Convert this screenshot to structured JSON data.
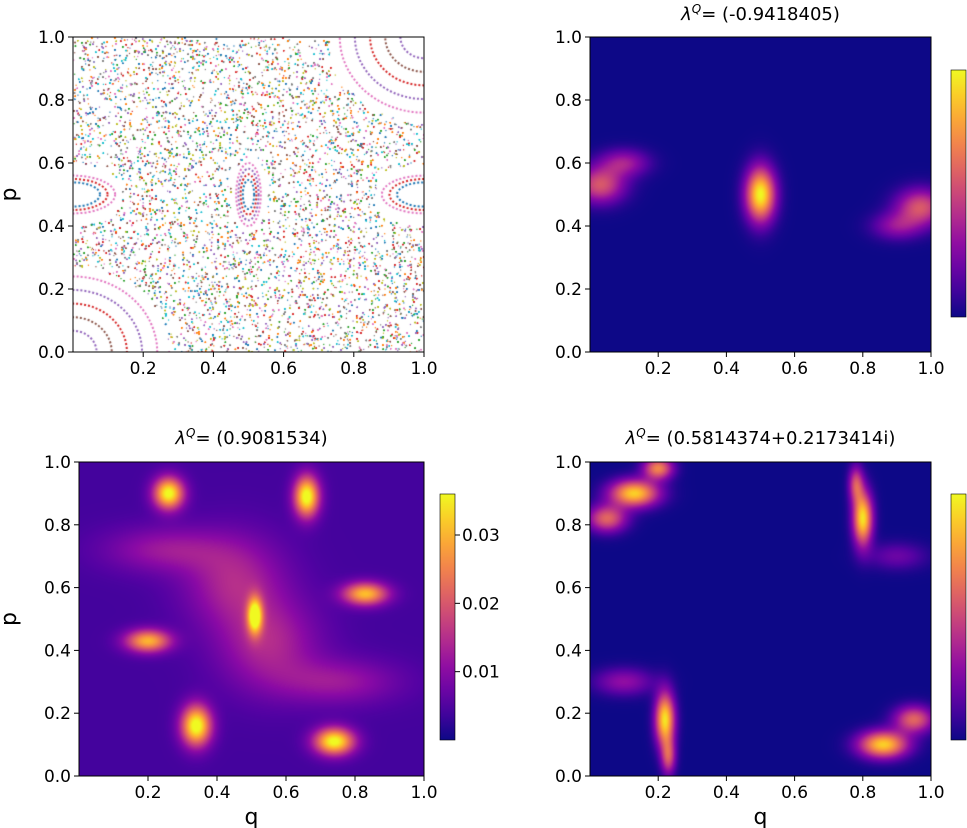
{
  "chart_data": [
    {
      "type": "scatter",
      "title": "",
      "xlabel": "",
      "ylabel": "p",
      "xlim": [
        0.0,
        1.0
      ],
      "ylim": [
        0.0,
        1.0
      ],
      "x_ticks": [
        "0.2",
        "0.4",
        "0.6",
        "0.8",
        "1.0"
      ],
      "y_ticks": [
        "0.0",
        "0.2",
        "0.4",
        "0.6",
        "0.8",
        "1.0"
      ],
      "grid": false,
      "description": "Poincare section: chaotic sea of multicolored points with regular islands near (0,0),(1,1),(0.5,0.5),(0,0.5),(1,0.5)",
      "islands": [
        {
          "q": 0.0,
          "p": 0.0
        },
        {
          "q": 1.0,
          "p": 1.0
        },
        {
          "q": 0.5,
          "p": 0.5
        },
        {
          "q": 0.0,
          "p": 0.5
        },
        {
          "q": 1.0,
          "p": 0.5
        }
      ]
    },
    {
      "type": "heatmap",
      "title_prefix": "λ",
      "title_sup": "Q",
      "title_value": "= (-0.9418405)",
      "xlabel": "",
      "ylabel": "",
      "xlim": [
        0.0,
        1.0
      ],
      "ylim": [
        0.0,
        1.0
      ],
      "x_ticks": [
        "0.2",
        "0.4",
        "0.6",
        "0.8",
        "1.0"
      ],
      "y_ticks": [
        "0.0",
        "0.2",
        "0.4",
        "0.6",
        "0.8",
        "1.0"
      ],
      "colormap": "plasma",
      "colorbar_ticks": [],
      "blobs": [
        {
          "q": 0.5,
          "p": 0.5,
          "sq": 0.03,
          "sp": 0.06,
          "amp": 1.0
        },
        {
          "q": 0.03,
          "p": 0.53,
          "sq": 0.05,
          "sp": 0.04,
          "amp": 0.55
        },
        {
          "q": 0.1,
          "p": 0.6,
          "sq": 0.05,
          "sp": 0.03,
          "amp": 0.35
        },
        {
          "q": 0.97,
          "p": 0.46,
          "sq": 0.05,
          "sp": 0.04,
          "amp": 0.55
        },
        {
          "q": 0.9,
          "p": 0.4,
          "sq": 0.05,
          "sp": 0.03,
          "amp": 0.3
        }
      ]
    },
    {
      "type": "heatmap",
      "title_prefix": "λ",
      "title_sup": "Q",
      "title_value": "= (0.9081534)",
      "xlabel": "q",
      "ylabel": "p",
      "xlim": [
        0.0,
        1.0
      ],
      "ylim": [
        0.0,
        1.0
      ],
      "x_ticks": [
        "0.2",
        "0.4",
        "0.6",
        "0.8",
        "1.0"
      ],
      "y_ticks": [
        "0.0",
        "0.2",
        "0.4",
        "0.6",
        "0.8",
        "1.0"
      ],
      "colormap": "plasma",
      "colorbar_range": [
        0.0,
        0.036
      ],
      "colorbar_ticks": [
        "0.01",
        "0.02",
        "0.03"
      ],
      "colorbar_tick_values": [
        0.01,
        0.02,
        0.03
      ],
      "background_level": 0.004,
      "blobs": [
        {
          "q": 0.26,
          "p": 0.9,
          "sq": 0.03,
          "sp": 0.035,
          "amp": 0.033
        },
        {
          "q": 0.66,
          "p": 0.89,
          "sq": 0.025,
          "sp": 0.045,
          "amp": 0.034
        },
        {
          "q": 0.51,
          "p": 0.51,
          "sq": 0.015,
          "sp": 0.04,
          "amp": 0.031
        },
        {
          "q": 0.2,
          "p": 0.43,
          "sq": 0.045,
          "sp": 0.025,
          "amp": 0.026
        },
        {
          "q": 0.83,
          "p": 0.58,
          "sq": 0.045,
          "sp": 0.025,
          "amp": 0.027
        },
        {
          "q": 0.34,
          "p": 0.16,
          "sq": 0.03,
          "sp": 0.045,
          "amp": 0.034
        },
        {
          "q": 0.74,
          "p": 0.11,
          "sq": 0.04,
          "sp": 0.03,
          "amp": 0.033
        },
        {
          "q": 0.45,
          "p": 0.62,
          "sq": 0.1,
          "sp": 0.1,
          "amp": 0.01
        },
        {
          "q": 0.55,
          "p": 0.42,
          "sq": 0.1,
          "sp": 0.1,
          "amp": 0.01
        },
        {
          "q": 0.25,
          "p": 0.72,
          "sq": 0.12,
          "sp": 0.05,
          "amp": 0.008
        },
        {
          "q": 0.75,
          "p": 0.3,
          "sq": 0.12,
          "sp": 0.05,
          "amp": 0.008
        }
      ]
    },
    {
      "type": "heatmap",
      "title_prefix": "λ",
      "title_sup": "Q",
      "title_value": "= (0.5814374+0.2173414i)",
      "xlabel": "q",
      "ylabel": "",
      "xlim": [
        0.0,
        1.0
      ],
      "ylim": [
        0.0,
        1.0
      ],
      "x_ticks": [
        "0.2",
        "0.4",
        "0.6",
        "0.8",
        "1.0"
      ],
      "y_ticks": [
        "0.0",
        "0.2",
        "0.4",
        "0.6",
        "0.8",
        "1.0"
      ],
      "colormap": "plasma",
      "colorbar_ticks": [],
      "blobs": [
        {
          "q": 0.13,
          "p": 0.9,
          "sq": 0.05,
          "sp": 0.03,
          "amp": 0.9
        },
        {
          "q": 0.05,
          "p": 0.82,
          "sq": 0.04,
          "sp": 0.03,
          "amp": 0.6
        },
        {
          "q": 0.2,
          "p": 0.98,
          "sq": 0.03,
          "sp": 0.025,
          "amp": 0.7
        },
        {
          "q": 0.8,
          "p": 0.82,
          "sq": 0.02,
          "sp": 0.06,
          "amp": 0.95
        },
        {
          "q": 0.78,
          "p": 0.93,
          "sq": 0.015,
          "sp": 0.04,
          "amp": 0.5
        },
        {
          "q": 0.22,
          "p": 0.18,
          "sq": 0.02,
          "sp": 0.06,
          "amp": 0.95
        },
        {
          "q": 0.23,
          "p": 0.06,
          "sq": 0.015,
          "sp": 0.04,
          "amp": 0.5
        },
        {
          "q": 0.86,
          "p": 0.1,
          "sq": 0.05,
          "sp": 0.03,
          "amp": 0.9
        },
        {
          "q": 0.95,
          "p": 0.18,
          "sq": 0.04,
          "sp": 0.03,
          "amp": 0.6
        },
        {
          "q": 0.1,
          "p": 0.3,
          "sq": 0.06,
          "sp": 0.03,
          "amp": 0.3
        },
        {
          "q": 0.9,
          "p": 0.7,
          "sq": 0.06,
          "sp": 0.03,
          "amp": 0.2
        }
      ]
    }
  ]
}
